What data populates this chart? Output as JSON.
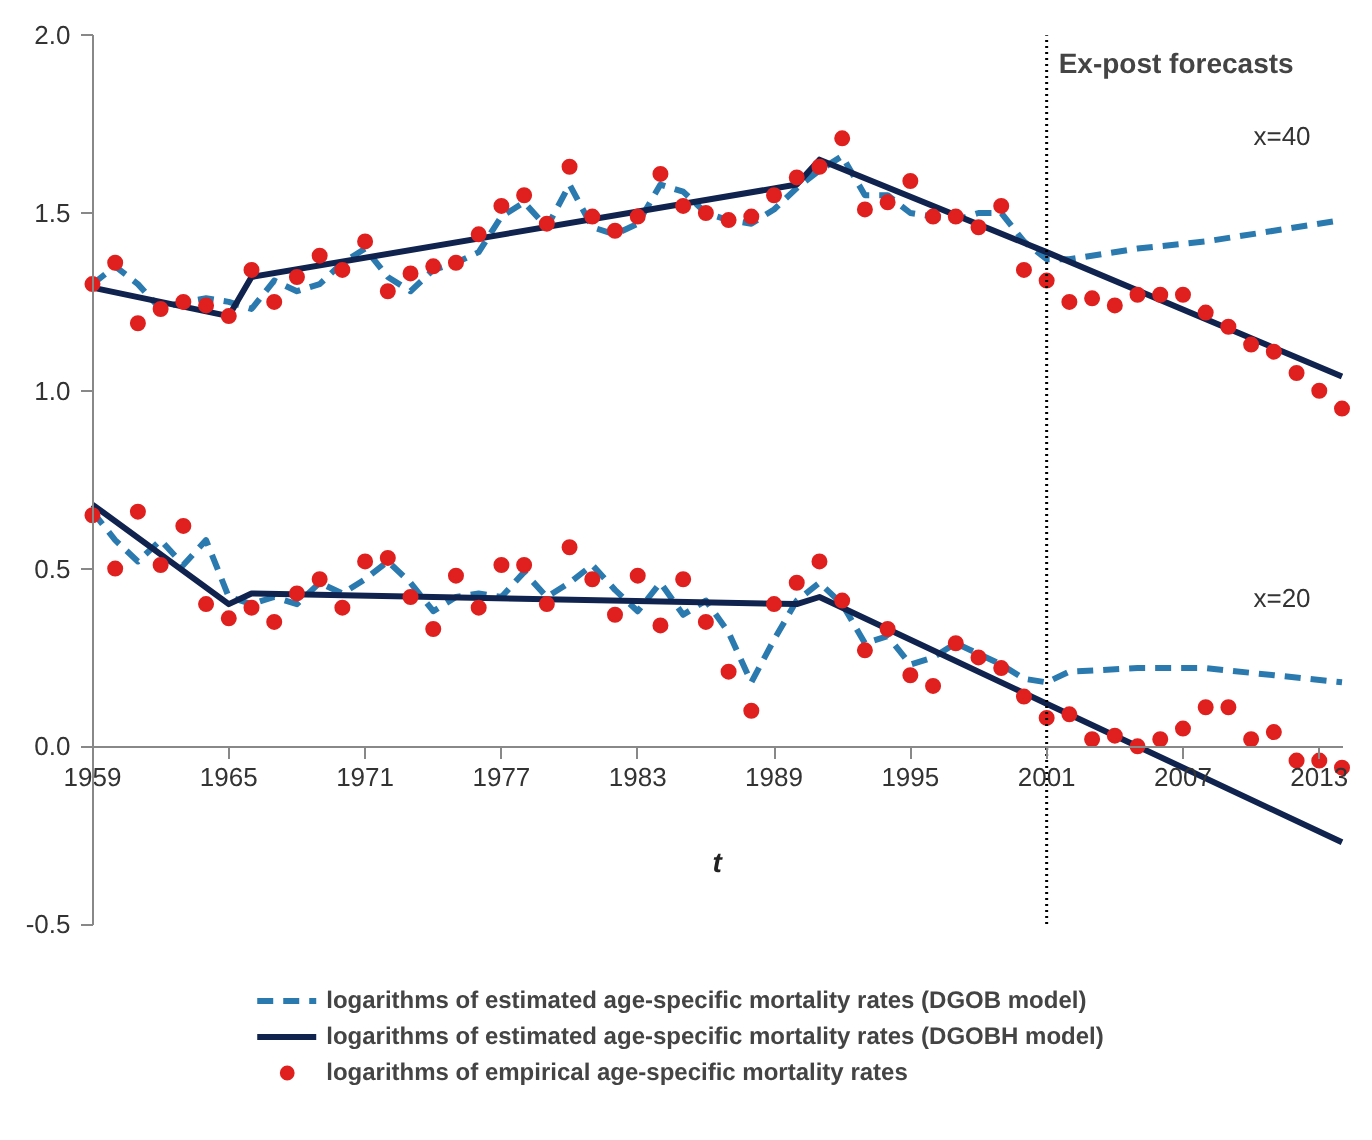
{
  "chart_data": {
    "type": "line",
    "xlabel": "t",
    "xlim": [
      1959,
      2014
    ],
    "xticks": [
      1959,
      1965,
      1971,
      1977,
      1983,
      1989,
      1995,
      2001,
      2007,
      2013
    ],
    "ylim": [
      -0.5,
      2.0
    ],
    "yticks": [
      {
        "value": -0.5,
        "label": "-0.5"
      },
      {
        "value": 0,
        "label": "0.0"
      },
      {
        "value": 0.5,
        "label": "0.5"
      },
      {
        "value": 1,
        "label": "1.0"
      },
      {
        "value": 1.5,
        "label": "1.5"
      },
      {
        "value": 2,
        "label": "2.0"
      }
    ],
    "grid": false,
    "legend": "bottom",
    "x": [
      1959,
      1960,
      1961,
      1962,
      1963,
      1964,
      1965,
      1966,
      1967,
      1968,
      1969,
      1970,
      1971,
      1972,
      1973,
      1974,
      1975,
      1976,
      1977,
      1978,
      1979,
      1980,
      1981,
      1982,
      1983,
      1984,
      1985,
      1986,
      1987,
      1988,
      1989,
      1990,
      1991,
      1992,
      1993,
      1994,
      1995,
      1996,
      1997,
      1998,
      1999,
      2000,
      2001,
      2002,
      2003,
      2004,
      2005,
      2006,
      2007,
      2008,
      2009,
      2010,
      2011,
      2012,
      2013,
      2014
    ],
    "series": [
      {
        "name": "logarithms of empirical age-specific mortality rates",
        "type": "scatter",
        "marker": "circle",
        "color": "#e0201e",
        "values": [
          1.3,
          1.36,
          1.19,
          1.23,
          1.25,
          1.24,
          1.21,
          1.34,
          1.25,
          1.32,
          1.38,
          1.34,
          1.42,
          1.28,
          1.33,
          1.35,
          1.36,
          1.44,
          1.52,
          1.55,
          1.47,
          1.63,
          1.49,
          1.45,
          1.49,
          1.61,
          1.52,
          1.5,
          1.48,
          1.49,
          1.55,
          1.6,
          1.63,
          1.71,
          1.51,
          1.53,
          1.59,
          1.49,
          1.49,
          1.46,
          1.52,
          1.34,
          1.31,
          1.25,
          1.26,
          1.24,
          1.27,
          1.27,
          1.27,
          1.22,
          1.18,
          1.13,
          1.11,
          1.05,
          1.0,
          0.95
        ]
      },
      {
        "type": "scatter",
        "marker": "circle",
        "color": "#e0201e",
        "values": [
          0.65,
          0.5,
          0.66,
          0.51,
          0.62,
          0.4,
          0.36,
          0.39,
          0.35,
          0.43,
          0.47,
          0.39,
          0.52,
          0.53,
          0.42,
          0.33,
          0.48,
          0.39,
          0.51,
          0.51,
          0.4,
          0.56,
          0.47,
          0.37,
          0.48,
          0.34,
          0.47,
          0.35,
          0.21,
          0.1,
          0.4,
          0.46,
          0.52,
          0.41,
          0.27,
          0.33,
          0.2,
          0.17,
          0.29,
          0.25,
          0.22,
          0.14,
          0.08,
          0.09,
          0.02,
          0.03,
          0.0,
          0.02,
          0.05,
          0.11,
          0.11,
          0.02,
          0.04,
          -0.04,
          -0.04,
          -0.06
        ]
      },
      {
        "name": "logarithms of estimated age-specific mortality rates (DGOB model)",
        "line_style": "dashed",
        "color": "#2a7ab0",
        "values": [
          1.3,
          1.35,
          1.3,
          1.23,
          1.25,
          1.26,
          1.25,
          1.23,
          1.31,
          1.28,
          1.3,
          1.36,
          1.4,
          1.32,
          1.28,
          1.34,
          1.36,
          1.39,
          1.49,
          1.53,
          1.46,
          1.58,
          1.46,
          1.44,
          1.47,
          1.58,
          1.56,
          1.5,
          1.48,
          1.47,
          1.51,
          1.57,
          1.62,
          1.66,
          1.55,
          1.55,
          1.5,
          1.49,
          1.48,
          1.5,
          1.5,
          1.42,
          1.37,
          1.37,
          null,
          null,
          1.4,
          null,
          null,
          1.42,
          null,
          null,
          1.45,
          null,
          null,
          1.48
        ]
      },
      {
        "line_style": "dashed",
        "color": "#2a7ab0",
        "values": [
          0.66,
          0.58,
          0.52,
          0.58,
          0.51,
          0.58,
          0.42,
          0.4,
          0.42,
          0.4,
          0.46,
          0.43,
          0.47,
          0.52,
          0.46,
          0.38,
          0.42,
          0.43,
          0.42,
          0.49,
          0.42,
          0.46,
          0.51,
          0.44,
          0.38,
          0.46,
          0.37,
          0.41,
          0.32,
          0.18,
          0.3,
          0.41,
          0.46,
          0.4,
          0.29,
          0.31,
          0.23,
          0.25,
          0.29,
          0.26,
          0.23,
          0.19,
          0.18,
          0.21,
          null,
          null,
          0.22,
          null,
          null,
          0.22,
          null,
          null,
          0.2,
          null,
          null,
          0.18
        ]
      },
      {
        "name": "logarithms of estimated age-specific mortality rates (DGOBH model)",
        "line_style": "solid",
        "color": "#10234f",
        "x": [
          1959,
          1965,
          1966,
          1990,
          1991,
          2001,
          2014
        ],
        "values": [
          1.29,
          1.21,
          1.32,
          1.58,
          1.65,
          1.39,
          1.04
        ]
      },
      {
        "line_style": "solid",
        "color": "#10234f",
        "x": [
          1959,
          1965,
          1966,
          1990,
          1991,
          2001,
          2014
        ],
        "values": [
          0.68,
          0.4,
          0.43,
          0.4,
          0.42,
          0.12,
          -0.27
        ]
      }
    ],
    "ref_lines": [
      {
        "axis": "x",
        "value": 2001,
        "label": "Ex-post forecasts",
        "line_style": "dotted",
        "color": "#000000"
      }
    ],
    "annotations": [
      "x=40",
      "x=20"
    ]
  }
}
